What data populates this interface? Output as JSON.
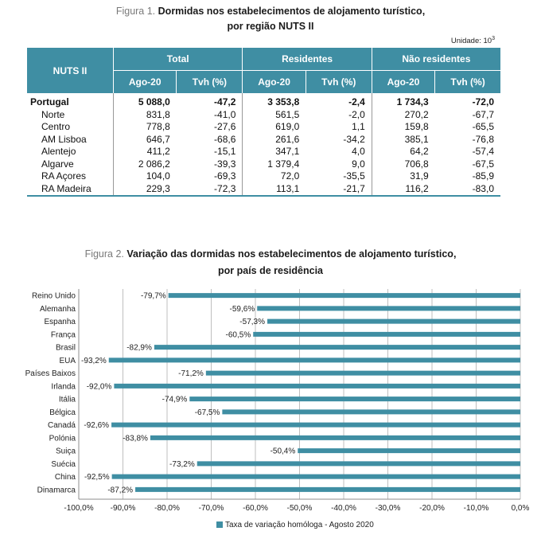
{
  "figure1": {
    "label": "Figura 1.",
    "title_line1": "Dormidas nos estabelecimentos de alojamento turístico,",
    "title_line2": "por região NUTS II",
    "unit": "Unidade: 10",
    "unit_exp": "3",
    "header": {
      "row_label": "NUTS II",
      "groups": [
        "Total",
        "Residentes",
        "Não residentes"
      ],
      "subheaders": [
        "Ago-20",
        "Tvh (%)",
        "Ago-20",
        "Tvh (%)",
        "Ago-20",
        "Tvh (%)"
      ]
    },
    "rows": [
      {
        "name": "Portugal",
        "values": [
          "5 088,0",
          "-47,2",
          "3 353,8",
          "-2,4",
          "1 734,3",
          "-72,0"
        ]
      },
      {
        "name": "Norte",
        "values": [
          "831,8",
          "-41,0",
          "561,5",
          "-2,0",
          "270,2",
          "-67,7"
        ]
      },
      {
        "name": "Centro",
        "values": [
          "778,8",
          "-27,6",
          "619,0",
          "1,1",
          "159,8",
          "-65,5"
        ]
      },
      {
        "name": "AM Lisboa",
        "values": [
          "646,7",
          "-68,6",
          "261,6",
          "-34,2",
          "385,1",
          "-76,8"
        ]
      },
      {
        "name": "Alentejo",
        "values": [
          "411,2",
          "-15,1",
          "347,1",
          "4,0",
          "64,2",
          "-57,4"
        ]
      },
      {
        "name": "Algarve",
        "values": [
          "2 086,2",
          "-39,3",
          "1 379,4",
          "9,0",
          "706,8",
          "-67,5"
        ]
      },
      {
        "name": "RA Açores",
        "values": [
          "104,0",
          "-69,3",
          "72,0",
          "-35,5",
          "31,9",
          "-85,9"
        ]
      },
      {
        "name": "RA Madeira",
        "values": [
          "229,3",
          "-72,3",
          "113,1",
          "-21,7",
          "116,2",
          "-83,0"
        ]
      }
    ]
  },
  "figure2": {
    "label": "Figura 2.",
    "title_line1": "Variação das dormidas nos estabelecimentos de alojamento turístico,",
    "title_line2": "por país de residência"
  },
  "chart_data": {
    "type": "bar",
    "orientation": "horizontal",
    "title": "Variação das dormidas nos estabelecimentos de alojamento turístico, por país de residência",
    "categories": [
      "Reino Unido",
      "Alemanha",
      "Espanha",
      "França",
      "Brasil",
      "EUA",
      "Países Baixos",
      "Irlanda",
      "Itália",
      "Bélgica",
      "Canadá",
      "Polónia",
      "Suiça",
      "Suécia",
      "China",
      "Dinamarca"
    ],
    "values": [
      -79.7,
      -59.6,
      -57.3,
      -60.5,
      -82.9,
      -93.2,
      -71.2,
      -92.0,
      -74.9,
      -67.5,
      -92.6,
      -83.8,
      -50.4,
      -73.2,
      -92.5,
      -87.2
    ],
    "data_labels": [
      "-79,7%",
      "-59,6%",
      "-57,3%",
      "-60,5%",
      "-82,9%",
      "-93,2%",
      "-71,2%",
      "-92,0%",
      "-74,9%",
      "-67,5%",
      "-92,6%",
      "-83,8%",
      "-50,4%",
      "-73,2%",
      "-92,5%",
      "-87,2%"
    ],
    "xlim": [
      -100,
      0
    ],
    "x_ticks": [
      -100,
      -90,
      -80,
      -70,
      -60,
      -50,
      -40,
      -30,
      -20,
      -10,
      0
    ],
    "x_tick_labels": [
      "-100,0%",
      "-90,0%",
      "-80,0%",
      "-70,0%",
      "-60,0%",
      "-50,0%",
      "-40,0%",
      "-30,0%",
      "-20,0%",
      "-10,0%",
      "0,0%"
    ],
    "grid": true,
    "legend": "bottom",
    "series": [
      {
        "name": "Taxa de variação homóloga - Agosto  2020"
      }
    ],
    "bar_color": "#3f8ea3"
  }
}
